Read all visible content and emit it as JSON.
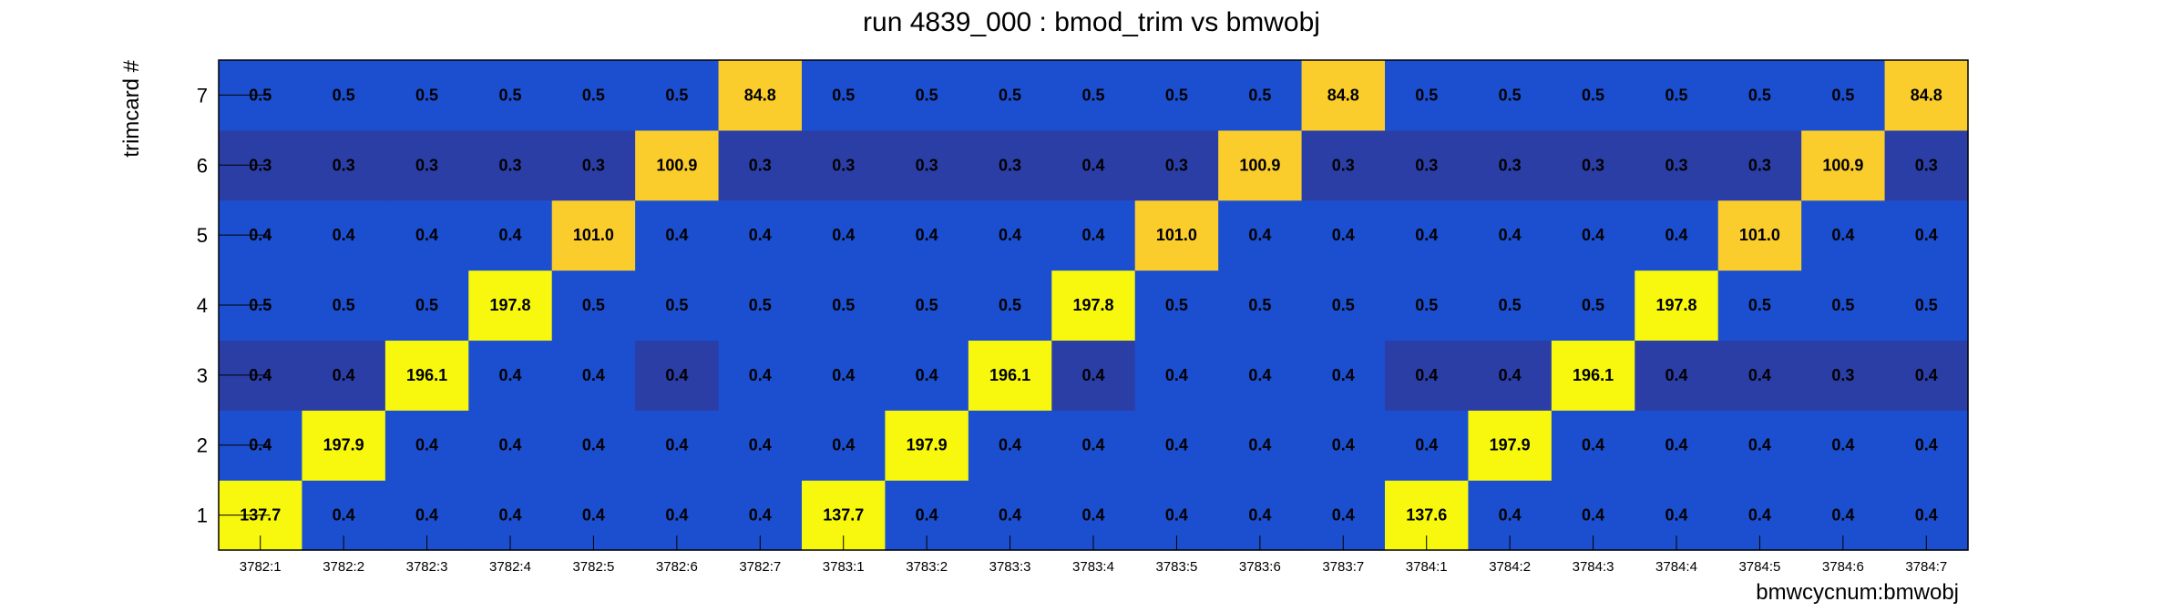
{
  "chart_data": {
    "type": "heatmap",
    "title": "run 4839_000 : bmod_trim vs bmwobj",
    "xlabel": "bmwcycnum:bmwobj",
    "ylabel": "trimcard #",
    "x_categories": [
      "3782:1",
      "3782:2",
      "3782:3",
      "3782:4",
      "3782:5",
      "3782:6",
      "3782:7",
      "3783:1",
      "3783:2",
      "3783:3",
      "3783:4",
      "3783:5",
      "3783:6",
      "3783:7",
      "3784:1",
      "3784:2",
      "3784:3",
      "3784:4",
      "3784:5",
      "3784:6",
      "3784:7"
    ],
    "y_categories": [
      "1",
      "2",
      "3",
      "4",
      "5",
      "6",
      "7"
    ],
    "values": [
      [
        "137.7",
        "0.4",
        "0.4",
        "0.4",
        "0.4",
        "0.4",
        "0.4",
        "137.7",
        "0.4",
        "0.4",
        "0.4",
        "0.4",
        "0.4",
        "0.4",
        "137.6",
        "0.4",
        "0.4",
        "0.4",
        "0.4",
        "0.4",
        "0.4"
      ],
      [
        "0.4",
        "197.9",
        "0.4",
        "0.4",
        "0.4",
        "0.4",
        "0.4",
        "0.4",
        "197.9",
        "0.4",
        "0.4",
        "0.4",
        "0.4",
        "0.4",
        "0.4",
        "197.9",
        "0.4",
        "0.4",
        "0.4",
        "0.4",
        "0.4"
      ],
      [
        "0.4",
        "0.4",
        "196.1",
        "0.4",
        "0.4",
        "0.4",
        "0.4",
        "0.4",
        "0.4",
        "196.1",
        "0.4",
        "0.4",
        "0.4",
        "0.4",
        "0.4",
        "0.4",
        "196.1",
        "0.4",
        "0.4",
        "0.3",
        "0.4"
      ],
      [
        "0.5",
        "0.5",
        "0.5",
        "197.8",
        "0.5",
        "0.5",
        "0.5",
        "0.5",
        "0.5",
        "0.5",
        "197.8",
        "0.5",
        "0.5",
        "0.5",
        "0.5",
        "0.5",
        "0.5",
        "197.8",
        "0.5",
        "0.5",
        "0.5"
      ],
      [
        "0.4",
        "0.4",
        "0.4",
        "0.4",
        "101.0",
        "0.4",
        "0.4",
        "0.4",
        "0.4",
        "0.4",
        "0.4",
        "101.0",
        "0.4",
        "0.4",
        "0.4",
        "0.4",
        "0.4",
        "0.4",
        "101.0",
        "0.4",
        "0.4"
      ],
      [
        "0.3",
        "0.3",
        "0.3",
        "0.3",
        "0.3",
        "100.9",
        "0.3",
        "0.3",
        "0.3",
        "0.3",
        "0.4",
        "0.3",
        "100.9",
        "0.3",
        "0.3",
        "0.3",
        "0.3",
        "0.3",
        "0.3",
        "100.9",
        "0.3"
      ],
      [
        "0.5",
        "0.5",
        "0.5",
        "0.5",
        "0.5",
        "0.5",
        "84.8",
        "0.5",
        "0.5",
        "0.5",
        "0.5",
        "0.5",
        "0.5",
        "84.8",
        "0.5",
        "0.5",
        "0.5",
        "0.5",
        "0.5",
        "0.5",
        "84.8"
      ]
    ],
    "colors": {
      "blue": "#1c4fcf",
      "dark_blue": "#2b3ea6",
      "gold": "#fbcd2c",
      "yellow": "#f8f80e"
    },
    "cell_colors": [
      [
        "yellow",
        "blue",
        "blue",
        "blue",
        "blue",
        "blue",
        "blue",
        "yellow",
        "blue",
        "blue",
        "blue",
        "blue",
        "blue",
        "blue",
        "yellow",
        "blue",
        "blue",
        "blue",
        "blue",
        "blue",
        "blue"
      ],
      [
        "blue",
        "yellow",
        "blue",
        "blue",
        "blue",
        "blue",
        "blue",
        "blue",
        "yellow",
        "blue",
        "blue",
        "blue",
        "blue",
        "blue",
        "blue",
        "yellow",
        "blue",
        "blue",
        "blue",
        "blue",
        "blue"
      ],
      [
        "dark_blue",
        "dark_blue",
        "yellow",
        "blue",
        "blue",
        "dark_blue",
        "blue",
        "blue",
        "blue",
        "yellow",
        "dark_blue",
        "blue",
        "blue",
        "blue",
        "dark_blue",
        "dark_blue",
        "yellow",
        "dark_blue",
        "dark_blue",
        "dark_blue",
        "dark_blue"
      ],
      [
        "blue",
        "blue",
        "blue",
        "yellow",
        "blue",
        "blue",
        "blue",
        "blue",
        "blue",
        "blue",
        "yellow",
        "blue",
        "blue",
        "blue",
        "blue",
        "blue",
        "blue",
        "yellow",
        "blue",
        "blue",
        "blue"
      ],
      [
        "blue",
        "blue",
        "blue",
        "blue",
        "gold",
        "blue",
        "blue",
        "blue",
        "blue",
        "blue",
        "blue",
        "gold",
        "blue",
        "blue",
        "blue",
        "blue",
        "blue",
        "blue",
        "gold",
        "blue",
        "blue"
      ],
      [
        "dark_blue",
        "dark_blue",
        "dark_blue",
        "dark_blue",
        "dark_blue",
        "gold",
        "dark_blue",
        "dark_blue",
        "dark_blue",
        "dark_blue",
        "dark_blue",
        "dark_blue",
        "gold",
        "dark_blue",
        "dark_blue",
        "dark_blue",
        "dark_blue",
        "dark_blue",
        "dark_blue",
        "gold",
        "dark_blue"
      ],
      [
        "blue",
        "blue",
        "blue",
        "blue",
        "blue",
        "blue",
        "gold",
        "blue",
        "blue",
        "blue",
        "blue",
        "blue",
        "blue",
        "gold",
        "blue",
        "blue",
        "blue",
        "blue",
        "blue",
        "blue",
        "gold"
      ]
    ],
    "grid": false,
    "legend": "none"
  }
}
